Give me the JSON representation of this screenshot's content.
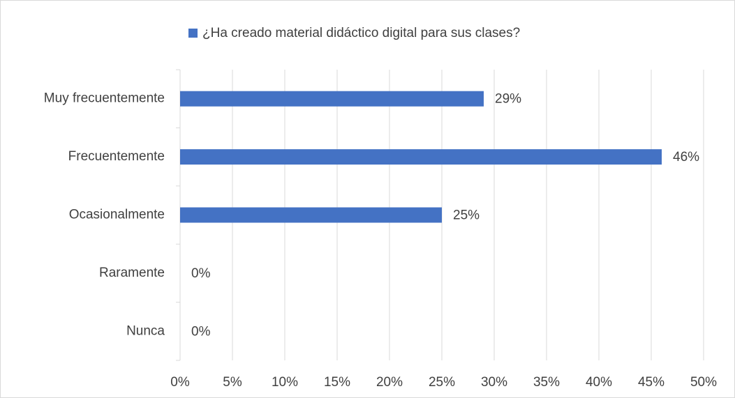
{
  "chart_data": {
    "type": "hbar",
    "legend": "¿Ha creado material didáctico digital para sus clases?",
    "legend_position": "top",
    "categories": [
      "Muy frecuentemente",
      "Frecuentemente",
      "Ocasionalmente",
      "Raramente",
      "Nunca"
    ],
    "series": [
      {
        "name": "¿Ha creado material didáctico digital para sus clases?",
        "color": "#4472c4",
        "values": [
          29,
          46,
          25,
          0,
          0
        ],
        "value_labels": [
          "29%",
          "46%",
          "25%",
          "0%",
          "0%"
        ]
      }
    ],
    "xlim": [
      0,
      50
    ],
    "xticks": [
      {
        "value": 0,
        "label": "0%"
      },
      {
        "value": 5,
        "label": "5%"
      },
      {
        "value": 10,
        "label": "10%"
      },
      {
        "value": 15,
        "label": "15%"
      },
      {
        "value": 20,
        "label": "20%"
      },
      {
        "value": 25,
        "label": "25%"
      },
      {
        "value": 30,
        "label": "30%"
      },
      {
        "value": 35,
        "label": "35%"
      },
      {
        "value": 40,
        "label": "40%"
      },
      {
        "value": 45,
        "label": "45%"
      },
      {
        "value": 50,
        "label": "50%"
      }
    ],
    "grid": true
  }
}
